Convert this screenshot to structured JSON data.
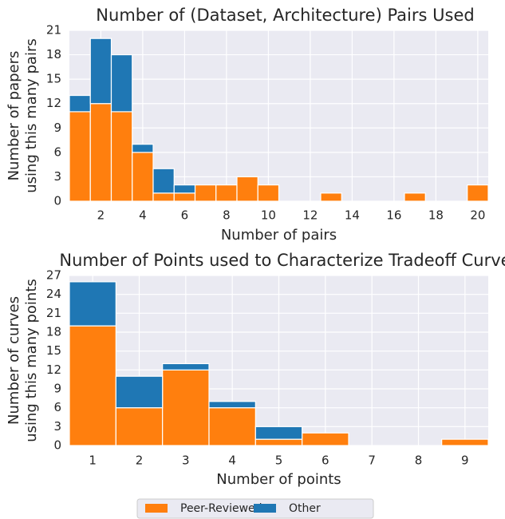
{
  "chart_data": [
    {
      "type": "histogram",
      "title": "Number of (Dataset, Architecture) Pairs Used",
      "xlabel": "Number of pairs",
      "ylabel": [
        "Number of papers",
        "using this many pairs"
      ],
      "bins": [
        0.5,
        1.5,
        2.5,
        3.5,
        4.5,
        5.5,
        6.5,
        7.5,
        8.5,
        9.5,
        10.5,
        11.5,
        12.5,
        13.5,
        14.5,
        15.5,
        16.5,
        17.5,
        18.5,
        19.5,
        20.5
      ],
      "series": [
        {
          "name": "Peer-Reviewed",
          "color": "#ff7f0e",
          "values": [
            11,
            12,
            11,
            6,
            1,
            1,
            2,
            2,
            3,
            2,
            0,
            0,
            1,
            0,
            0,
            0,
            1,
            0,
            0,
            2
          ]
        },
        {
          "name": "Other",
          "color": "#1f77b4",
          "values": [
            2,
            8,
            7,
            1,
            3,
            1,
            0,
            0,
            0,
            0,
            0,
            0,
            0,
            0,
            0,
            0,
            0,
            0,
            0,
            0
          ]
        }
      ],
      "stacked": true,
      "grid": true,
      "xlim": [
        0.5,
        20.5
      ],
      "xticks": [
        2,
        4,
        6,
        8,
        10,
        12,
        14,
        16,
        18,
        20
      ],
      "ylim": [
        0,
        21
      ],
      "yticks": [
        0,
        3,
        6,
        9,
        12,
        15,
        18,
        21
      ]
    },
    {
      "type": "histogram",
      "title": "Number of Points used to Characterize Tradeoff Curve",
      "xlabel": "Number of points",
      "ylabel": [
        "Number of curves",
        "using this many points"
      ],
      "bins": [
        0.5,
        1.5,
        2.5,
        3.5,
        4.5,
        5.5,
        6.5,
        7.5,
        8.5,
        9.5
      ],
      "series": [
        {
          "name": "Peer-Reviewed",
          "color": "#ff7f0e",
          "values": [
            19,
            6,
            12,
            6,
            1,
            2,
            0,
            0,
            1
          ]
        },
        {
          "name": "Other",
          "color": "#1f77b4",
          "values": [
            7,
            5,
            1,
            1,
            2,
            0,
            0,
            0,
            0
          ]
        }
      ],
      "stacked": true,
      "grid": true,
      "xlim": [
        0.5,
        9.5
      ],
      "xticks": [
        1,
        2,
        3,
        4,
        5,
        6,
        7,
        8,
        9
      ],
      "ylim": [
        0,
        27
      ],
      "yticks": [
        0,
        3,
        6,
        9,
        12,
        15,
        18,
        21,
        24,
        27
      ]
    }
  ]
}
